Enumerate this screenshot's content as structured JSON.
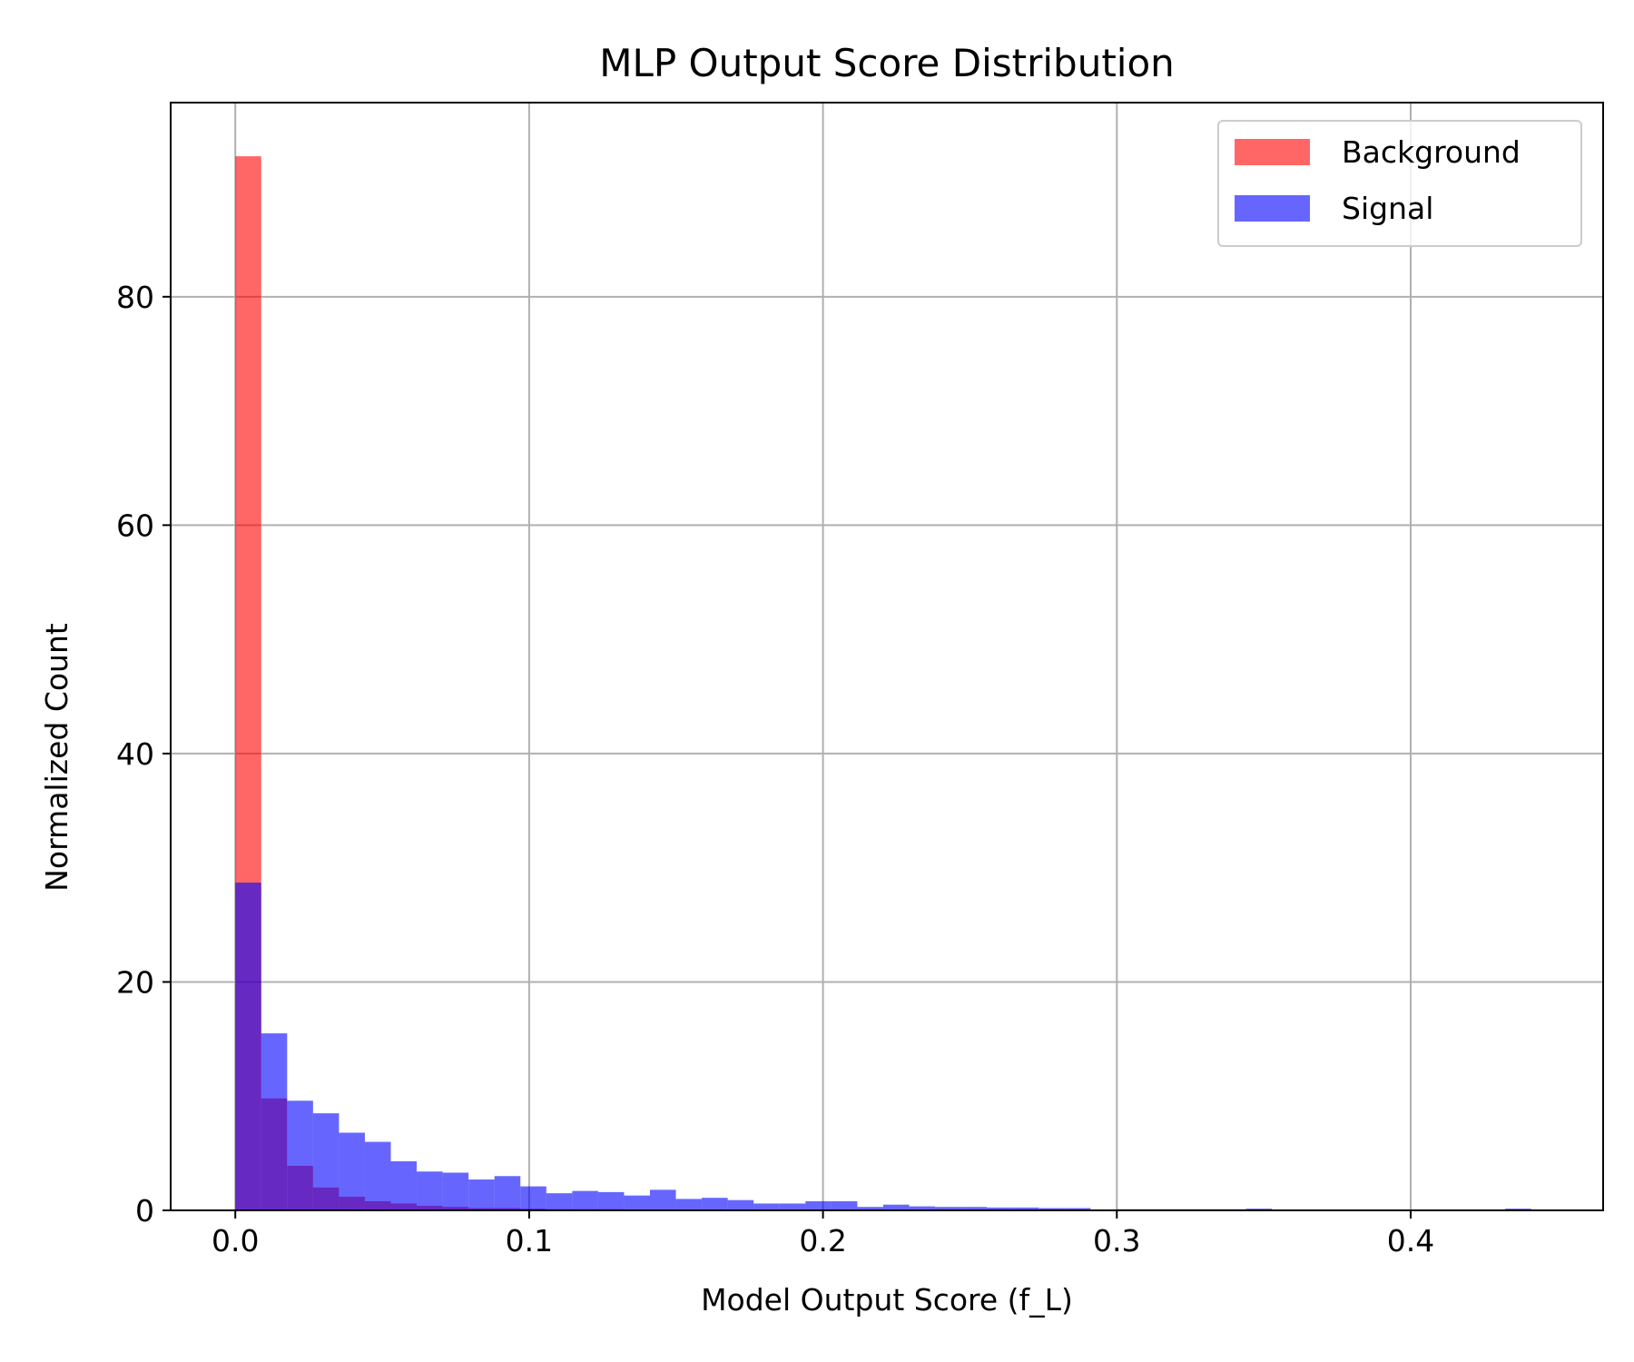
{
  "chart_data": {
    "type": "bar",
    "title": "MLP Output Score Distribution",
    "xlabel": "Model Output Score (f_L)",
    "ylabel": "Normalized Count",
    "xlim": [
      -0.022,
      0.4655
    ],
    "ylim": [
      0,
      97
    ],
    "xticks": [
      0.0,
      0.1,
      0.2,
      0.3,
      0.4
    ],
    "xtick_labels": [
      "0.0",
      "0.1",
      "0.2",
      "0.3",
      "0.4"
    ],
    "yticks": [
      0,
      20,
      40,
      60,
      80
    ],
    "ytick_labels": [
      "0",
      "20",
      "40",
      "60",
      "80"
    ],
    "grid": true,
    "legend_position": "top-right",
    "bin_start": 0.0,
    "bin_width": 0.00882,
    "series": [
      {
        "name": "Background",
        "color": "#ff0000",
        "alpha": 0.6,
        "values": [
          92.3,
          9.8,
          3.9,
          2.0,
          1.2,
          0.8,
          0.6,
          0.4,
          0.3,
          0.2,
          0.2,
          0.15,
          0.1,
          0.1,
          0.1,
          0.08,
          0.07,
          0.06,
          0.05,
          0.04,
          0.04,
          0.03,
          0.03,
          0.02,
          0.02,
          0.02,
          0.02,
          0.01,
          0.01,
          0.01,
          0.01,
          0.01,
          0.01,
          0.01,
          0.01,
          0,
          0,
          0,
          0,
          0,
          0,
          0,
          0,
          0,
          0,
          0,
          0,
          0,
          0,
          0
        ]
      },
      {
        "name": "Signal",
        "color": "#0000ff",
        "alpha": 0.6,
        "values": [
          28.7,
          15.5,
          9.6,
          8.5,
          6.8,
          6.0,
          4.3,
          3.4,
          3.3,
          2.7,
          3.0,
          2.1,
          1.5,
          1.7,
          1.6,
          1.3,
          1.8,
          1.0,
          1.1,
          0.9,
          0.6,
          0.6,
          0.8,
          0.8,
          0.3,
          0.5,
          0.35,
          0.3,
          0.3,
          0.25,
          0.25,
          0.2,
          0.2,
          0.0,
          0.1,
          0.1,
          0.1,
          0.1,
          0.1,
          0.15,
          0.05,
          0.05,
          0.0,
          0.0,
          0.05,
          0.0,
          0.0,
          0.0,
          0.0,
          0.15
        ]
      }
    ]
  }
}
